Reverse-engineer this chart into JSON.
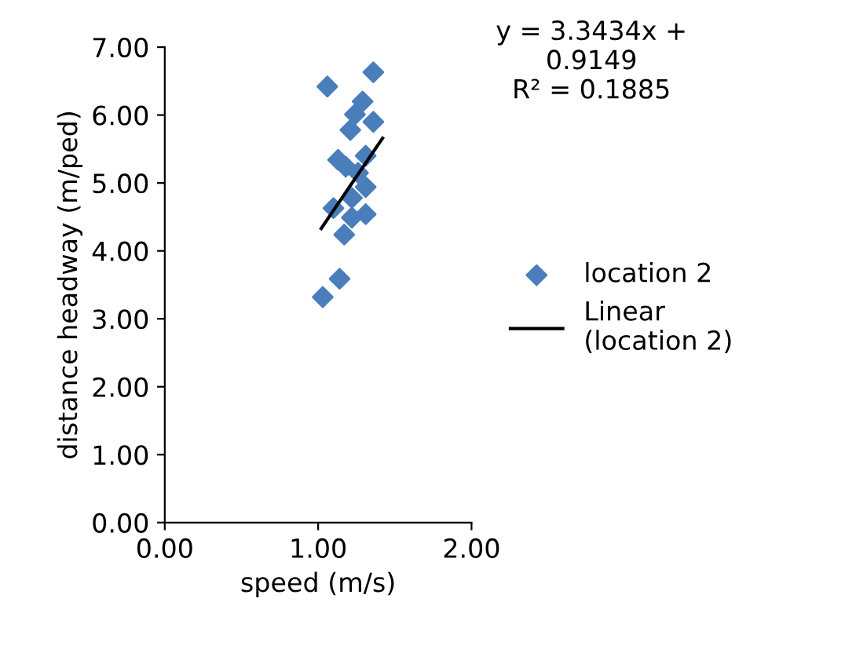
{
  "chart_data": {
    "type": "scatter",
    "xlabel": "speed (m/s)",
    "ylabel": "distance headway (m/ped)",
    "xlim": [
      0,
      2
    ],
    "xticks": [
      {
        "value": 0,
        "label": "0.00"
      },
      {
        "value": 1,
        "label": "1.00"
      },
      {
        "value": 2,
        "label": "2.00"
      }
    ],
    "ylim": [
      0,
      7
    ],
    "yticks": [
      {
        "value": 0,
        "label": "0.00"
      },
      {
        "value": 1,
        "label": "1.00"
      },
      {
        "value": 2,
        "label": "2.00"
      },
      {
        "value": 3,
        "label": "3.00"
      },
      {
        "value": 4,
        "label": "4.00"
      },
      {
        "value": 5,
        "label": "5.00"
      },
      {
        "value": 6,
        "label": "6.00"
      },
      {
        "value": 7,
        "label": "7.00"
      }
    ],
    "legend": "right",
    "grid": false,
    "annotations": [
      "y = 3.3434x +\n0.9149\nR² = 0.1885"
    ],
    "series": [
      {
        "name": "location 2",
        "marker": "diamond",
        "color": "#4a7ebb",
        "x": [
          1.36,
          1.06,
          1.29,
          1.24,
          1.36,
          1.21,
          1.31,
          1.13,
          1.18,
          1.26,
          1.31,
          1.22,
          1.1,
          1.31,
          1.22,
          1.17,
          1.14,
          1.03
        ],
        "values": [
          6.63,
          6.42,
          6.2,
          6.01,
          5.9,
          5.78,
          5.4,
          5.34,
          5.24,
          5.15,
          4.94,
          4.78,
          4.63,
          4.54,
          4.49,
          4.24,
          3.59,
          3.32
        ]
      },
      {
        "name": "Linear\n(location 2)",
        "type": "line",
        "marker": "none",
        "color": "#000000",
        "x": [
          1.02,
          1.42
        ],
        "values": [
          4.33,
          5.66
        ]
      }
    ]
  }
}
